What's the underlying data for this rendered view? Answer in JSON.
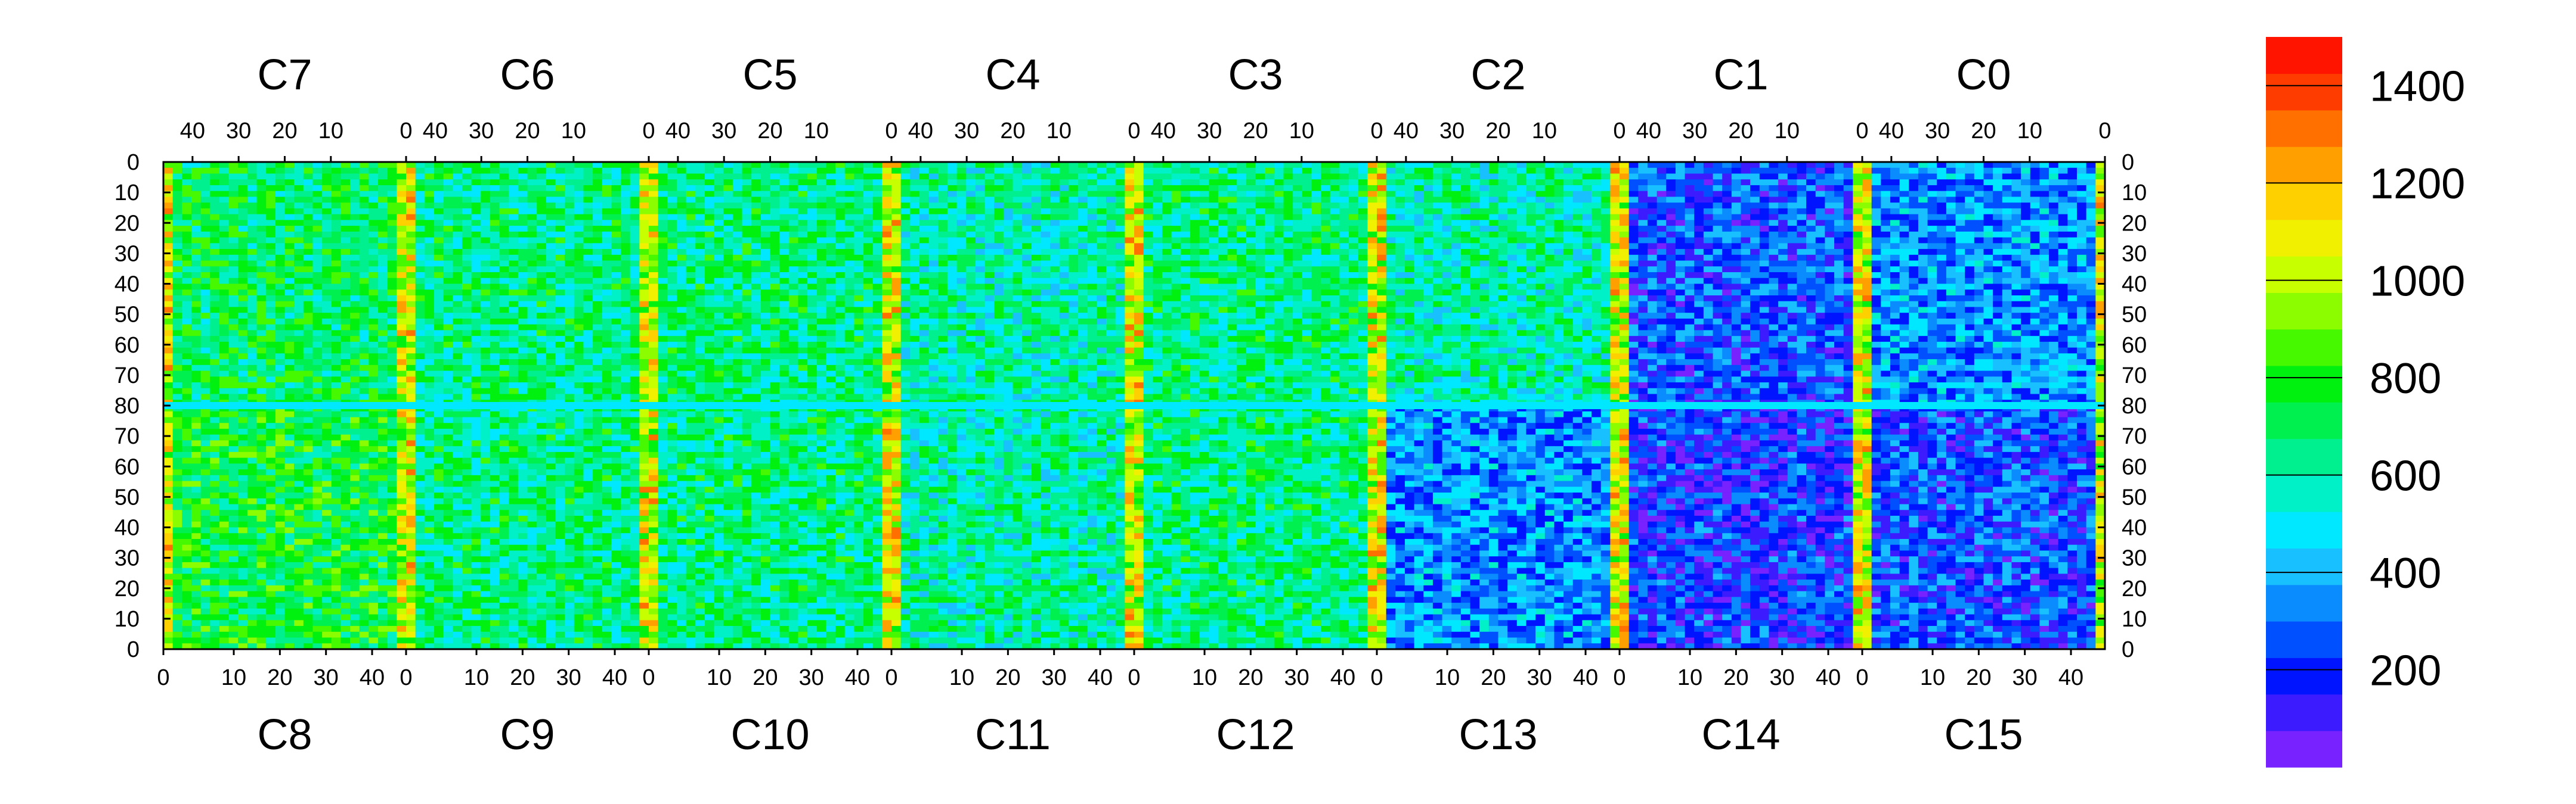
{
  "chart_data": {
    "type": "heatmap",
    "title": "",
    "top_row_chips": [
      "C7",
      "C6",
      "C5",
      "C4",
      "C3",
      "C2",
      "C1",
      "C0"
    ],
    "bottom_row_chips": [
      "C8",
      "C9",
      "C10",
      "C11",
      "C12",
      "C13",
      "C14",
      "C15"
    ],
    "top_axis_ticks": [
      "40",
      "30",
      "20",
      "10",
      "0"
    ],
    "bottom_axis_ticks": [
      "0",
      "10",
      "20",
      "30",
      "40"
    ],
    "upper_half_y_ticks": [
      "0",
      "10",
      "20",
      "30",
      "40",
      "50",
      "60",
      "70",
      "80"
    ],
    "lower_half_y_ticks": [
      "80",
      "70",
      "60",
      "50",
      "40",
      "30",
      "20",
      "10",
      "0"
    ],
    "zlim": [
      0,
      1500
    ],
    "colorbar_ticks": [
      200,
      400,
      600,
      800,
      1000,
      1200,
      1400
    ],
    "colorbar_tick_labels": [
      "200",
      "400",
      "600",
      "800",
      "1000",
      "1200",
      "1400"
    ],
    "colormap": [
      "#7722ff",
      "#3c1cff",
      "#0014ff",
      "#0050ff",
      "#0a8cff",
      "#18c0ff",
      "#00e8ff",
      "#00f0c8",
      "#00f090",
      "#00f050",
      "#00f010",
      "#46f800",
      "#8cfc00",
      "#c8ff00",
      "#f0f000",
      "#ffd000",
      "#ffa000",
      "#ff7000",
      "#ff3c00",
      "#ff1400"
    ],
    "regions": [
      {
        "chip": "C7",
        "level": 700
      },
      {
        "chip": "C6",
        "level": 650
      },
      {
        "chip": "C5",
        "level": 650
      },
      {
        "chip": "C4",
        "level": 600
      },
      {
        "chip": "C3",
        "level": 650
      },
      {
        "chip": "C2",
        "level": 600
      },
      {
        "chip": "C1",
        "level": 250
      },
      {
        "chip": "C0",
        "level": 350
      },
      {
        "chip": "C8",
        "level": 750
      },
      {
        "chip": "C9",
        "level": 650
      },
      {
        "chip": "C10",
        "level": 650
      },
      {
        "chip": "C11",
        "level": 600
      },
      {
        "chip": "C12",
        "level": 650
      },
      {
        "chip": "C13",
        "level": 350
      },
      {
        "chip": "C14",
        "level": 200
      },
      {
        "chip": "C15",
        "level": 250
      }
    ],
    "hot_columns_level": 1300,
    "grid": false,
    "legend": "right (colorbar)"
  }
}
